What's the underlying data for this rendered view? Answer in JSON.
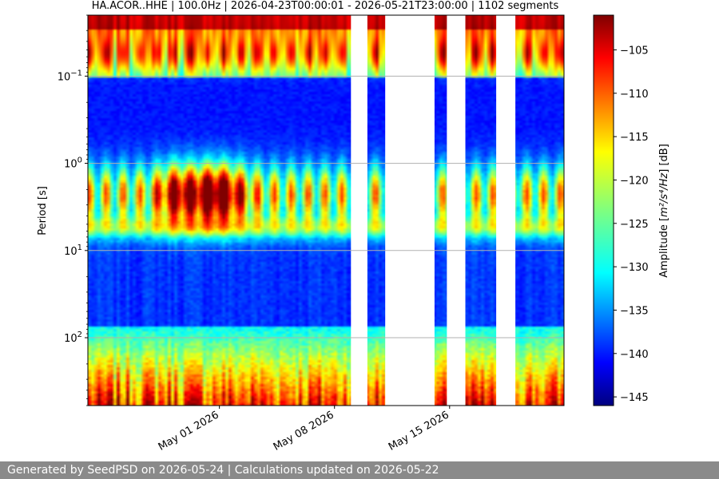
{
  "chart_data": {
    "type": "heatmap",
    "title": "HA.ACOR..HHE | 100.0Hz | 2026-04-23T00:00:01 - 2026-05-21T23:00:00 | 1102 segments",
    "ylabel": "Period [s]",
    "xlabel": "",
    "x_ticks": [
      {
        "date": "2026-05-01",
        "label": "May 01 2026"
      },
      {
        "date": "2026-05-08",
        "label": "May 08 2026"
      },
      {
        "date": "2026-05-15",
        "label": "May 15 2026"
      }
    ],
    "xlim": [
      "2026-04-23T00:00:01",
      "2026-05-21T23:00:00"
    ],
    "y_scale": "log",
    "y_inverted": true,
    "y_ticks": [
      {
        "value": 0.1,
        "label": "10",
        "exp": "−1"
      },
      {
        "value": 1,
        "label": "10",
        "exp": "0"
      },
      {
        "value": 10,
        "label": "10",
        "exp": "1"
      },
      {
        "value": 100,
        "label": "10",
        "exp": "2"
      }
    ],
    "ylim": [
      0.02,
      600
    ],
    "grid": "horizontal",
    "data_gaps": [
      [
        "2026-05-09T00:00:00",
        "2026-05-10T00:00:00"
      ],
      [
        "2026-05-11T02:00:00",
        "2026-05-14T02:00:00"
      ],
      [
        "2026-05-14T20:00:00",
        "2026-05-15T23:00:00"
      ],
      [
        "2026-05-17T20:00:00",
        "2026-05-19T00:00:00"
      ]
    ],
    "colorbar": {
      "label_prefix": "Amplitude [",
      "label_unit": "m²/s⁴/Hz",
      "label_suffix": "] [dB]",
      "min": -146,
      "max": -101,
      "ticks": [
        -105,
        -110,
        -115,
        -120,
        -125,
        -130,
        -135,
        -140,
        -145
      ],
      "colormap": "jet"
    }
  },
  "footer": {
    "text": "Generated by SeedPSD on 2026-05-24 | Calculations updated on 2026-05-22"
  }
}
